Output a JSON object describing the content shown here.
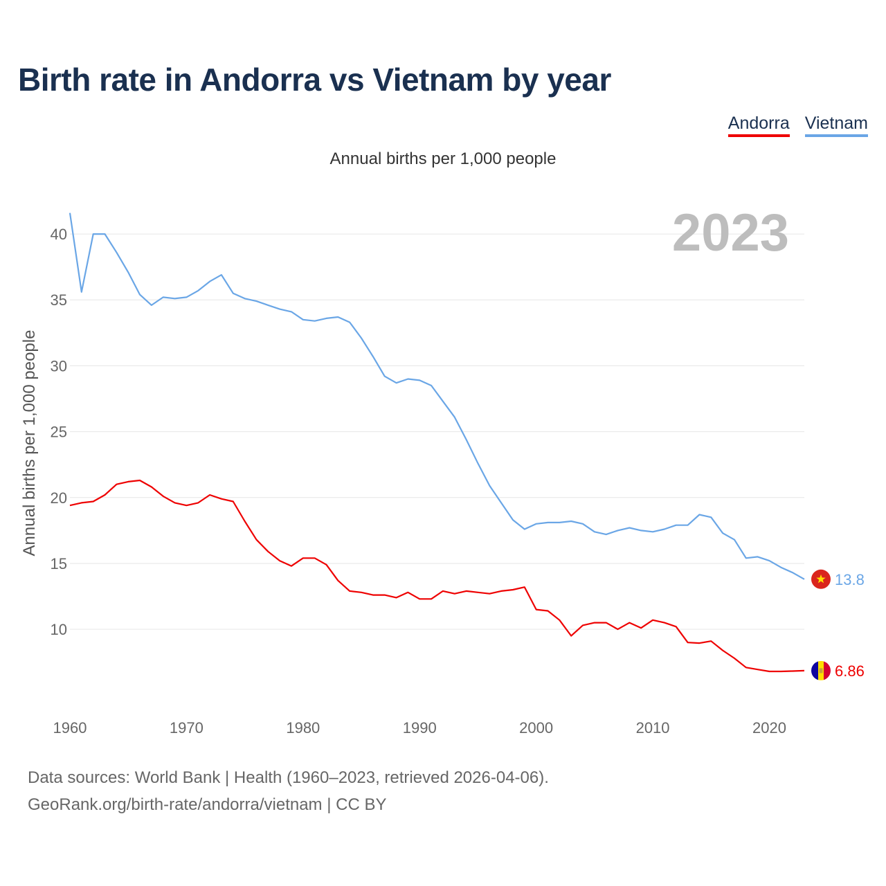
{
  "chart_data": {
    "type": "line",
    "title": "Birth rate in Andorra vs Vietnam by year",
    "subtitle": "Annual births per 1,000 people",
    "ylabel": "Annual births per 1,000 people",
    "xlabel": "",
    "xlim": [
      1960,
      2023
    ],
    "ylim": [
      4.7,
      42
    ],
    "yticks": [
      10,
      15,
      20,
      25,
      30,
      35,
      40
    ],
    "xticks": [
      1960,
      1970,
      1980,
      1990,
      2000,
      2010,
      2020
    ],
    "year_label": "2023",
    "legend": [
      "Andorra",
      "Vietnam"
    ],
    "series": [
      {
        "name": "Andorra",
        "color": "#ee0000",
        "end_label": "6.86",
        "values": [
          19.4,
          19.6,
          19.7,
          20.2,
          21.0,
          21.2,
          21.3,
          20.8,
          20.1,
          19.6,
          19.4,
          19.6,
          20.2,
          19.9,
          19.7,
          18.2,
          16.8,
          15.9,
          15.2,
          14.8,
          15.4,
          15.4,
          14.9,
          13.7,
          12.9,
          12.8,
          12.6,
          12.6,
          12.4,
          12.8,
          12.3,
          12.3,
          12.9,
          12.7,
          12.9,
          12.8,
          12.7,
          12.9,
          13.0,
          13.2,
          11.5,
          11.4,
          10.7,
          9.5,
          10.3,
          10.5,
          10.5,
          10.0,
          10.5,
          10.1,
          10.7,
          10.5,
          10.2,
          9.0,
          8.95,
          9.1,
          8.4,
          7.8,
          7.1,
          6.95,
          6.8,
          6.8,
          6.83,
          6.86
        ]
      },
      {
        "name": "Vietnam",
        "color": "#6aa6e6",
        "end_label": "13.8",
        "values": [
          41.6,
          35.6,
          40.0,
          40.0,
          38.6,
          37.1,
          35.4,
          34.6,
          35.2,
          35.1,
          35.2,
          35.7,
          36.4,
          36.9,
          35.5,
          35.1,
          34.9,
          34.6,
          34.3,
          34.1,
          33.5,
          33.4,
          33.6,
          33.7,
          33.3,
          32.1,
          30.7,
          29.2,
          28.7,
          29.0,
          28.9,
          28.5,
          27.3,
          26.1,
          24.4,
          22.6,
          20.9,
          19.6,
          18.3,
          17.6,
          18.0,
          18.1,
          18.1,
          18.2,
          18.0,
          17.4,
          17.2,
          17.5,
          17.7,
          17.5,
          17.4,
          17.6,
          17.9,
          17.9,
          18.7,
          18.5,
          17.3,
          16.8,
          15.4,
          15.5,
          15.2,
          14.7,
          14.3,
          13.8
        ]
      }
    ]
  },
  "footer": {
    "line1": "Data sources: World Bank | Health (1960–2023, retrieved 2026-04-06).",
    "line2": "GeoRank.org/birth-rate/andorra/vietnam | CC BY"
  }
}
